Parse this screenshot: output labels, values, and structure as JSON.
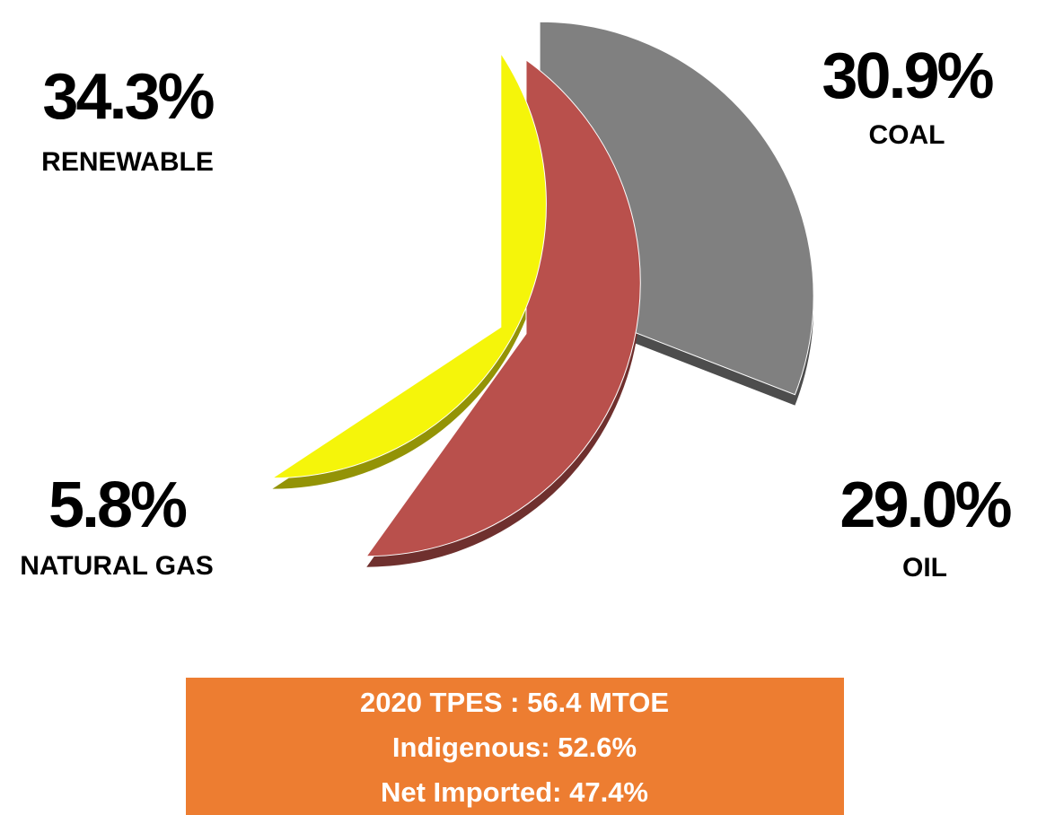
{
  "chart_data": {
    "type": "pie",
    "categories": [
      "COAL",
      "OIL",
      "NATURAL GAS",
      "RENEWABLE"
    ],
    "values": [
      30.9,
      29.0,
      5.8,
      34.3
    ],
    "value_labels": [
      "30.9%",
      "29.0%",
      "5.8%",
      "34.3%"
    ],
    "colors": [
      "#808080",
      "#b9504c",
      "#f5f50a",
      "#9bbb59"
    ],
    "annotations": [
      "2020 TPES : 56.4 MTOE",
      "Indigenous: 52.6%",
      "Net Imported: 47.4%"
    ]
  }
}
